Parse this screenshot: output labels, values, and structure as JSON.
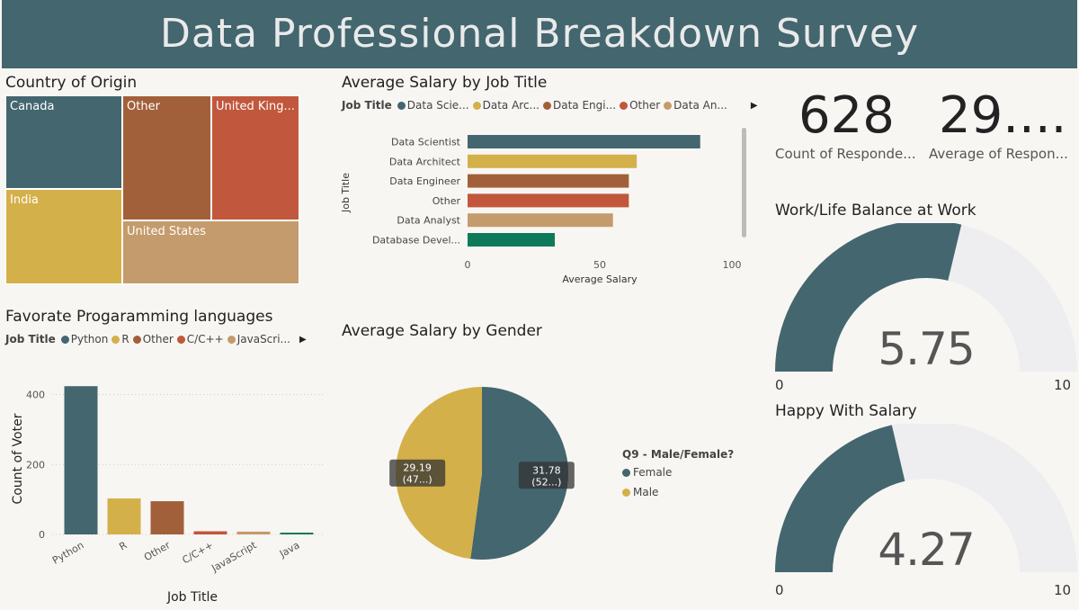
{
  "header": {
    "title": "Data Professional Breakdown Survey"
  },
  "colors": {
    "teal": "#43666f",
    "gold": "#d4b04a",
    "brown": "#a2603a",
    "red": "#c1573c",
    "tan": "#c49b6c",
    "green": "#0f7a5a",
    "track": "#eeeef0"
  },
  "treemap": {
    "title": "Country of Origin",
    "cells": [
      {
        "label": "Canada",
        "color": "#43666f"
      },
      {
        "label": "Other",
        "color": "#a2603a"
      },
      {
        "label": "United King...",
        "color": "#c1573c"
      },
      {
        "label": "India",
        "color": "#d4b04a"
      },
      {
        "label": "United States",
        "color": "#c49b6c"
      }
    ]
  },
  "salary_job": {
    "title": "Average Salary by Job Title",
    "legend_title": "Job Title",
    "legend": [
      {
        "label": "Data Scie...",
        "color": "#43666f"
      },
      {
        "label": "Data Arc...",
        "color": "#d4b04a"
      },
      {
        "label": "Data Engi...",
        "color": "#a2603a"
      },
      {
        "label": "Other",
        "color": "#c1573c"
      },
      {
        "label": "Data An...",
        "color": "#c49b6c"
      }
    ]
  },
  "languages": {
    "title": "Favorate Progaramming languages",
    "legend_title": "Job Title",
    "legend": [
      {
        "label": "Python",
        "color": "#43666f"
      },
      {
        "label": "R",
        "color": "#d4b04a"
      },
      {
        "label": "Other",
        "color": "#a2603a"
      },
      {
        "label": "C/C++",
        "color": "#c1573c"
      },
      {
        "label": "JavaScri...",
        "color": "#c49b6c"
      }
    ]
  },
  "gender": {
    "title": "Average Salary by Gender",
    "legend_title": "Q9 - Male/Female?",
    "legend": [
      {
        "label": "Female",
        "color": "#43666f"
      },
      {
        "label": "Male",
        "color": "#d4b04a"
      }
    ]
  },
  "cards": {
    "count": {
      "value": "628",
      "label": "Count of  Responde..."
    },
    "average": {
      "value": "29....",
      "label": "Average of  Respon..."
    }
  },
  "gauges": [
    {
      "title": "Work/Life Balance at Work",
      "min_label": "0",
      "max_label": "10"
    },
    {
      "title": "Happy With Salary",
      "min_label": "0",
      "max_label": "10"
    }
  ],
  "chart_data": [
    {
      "type": "treemap",
      "title": "Country of Origin",
      "categories": [
        "Canada",
        "Other",
        "United King...",
        "India",
        "United States"
      ]
    },
    {
      "type": "bar",
      "orientation": "horizontal",
      "title": "Average Salary by Job Title",
      "categories": [
        "Data Scientist",
        "Data Architect",
        "Data Engineer",
        "Other",
        "Data Analyst",
        "Database Devel..."
      ],
      "values": [
        88,
        64,
        61,
        61,
        55,
        33
      ],
      "colors": [
        "#43666f",
        "#d4b04a",
        "#a2603a",
        "#c1573c",
        "#c49b6c",
        "#0f7a5a"
      ],
      "xlabel": "Average Salary",
      "ylabel": "Job Title",
      "xlim": [
        0,
        100
      ],
      "xticks": [
        0,
        50,
        100
      ]
    },
    {
      "type": "bar",
      "title": "Favorate Progaramming languages",
      "categories": [
        "Python",
        "R",
        "Other",
        "C/C++",
        "JavaScript",
        "Java"
      ],
      "values": [
        424,
        103,
        95,
        9,
        8,
        3
      ],
      "colors": [
        "#43666f",
        "#d4b04a",
        "#a2603a",
        "#c1573c",
        "#c49b6c",
        "#0f7a5a"
      ],
      "xlabel": "Job Title",
      "ylabel": "Count of Voter",
      "ylim": [
        0,
        440
      ],
      "yticks": [
        0,
        200,
        400
      ]
    },
    {
      "type": "pie",
      "title": "Average Salary by Gender",
      "categories": [
        "Female",
        "Male"
      ],
      "values": [
        31.78,
        29.19
      ],
      "data_labels": [
        [
          "31.78",
          "(52...)"
        ],
        [
          "29.19",
          "(47...)"
        ]
      ],
      "colors": [
        "#43666f",
        "#d4b04a"
      ]
    },
    {
      "type": "gauge",
      "title": "Work/Life Balance at Work",
      "value": 5.75,
      "display": "5.75",
      "min": 0,
      "max": 10
    },
    {
      "type": "gauge",
      "title": "Happy With Salary",
      "value": 4.27,
      "display": "4.27",
      "min": 0,
      "max": 10
    }
  ]
}
